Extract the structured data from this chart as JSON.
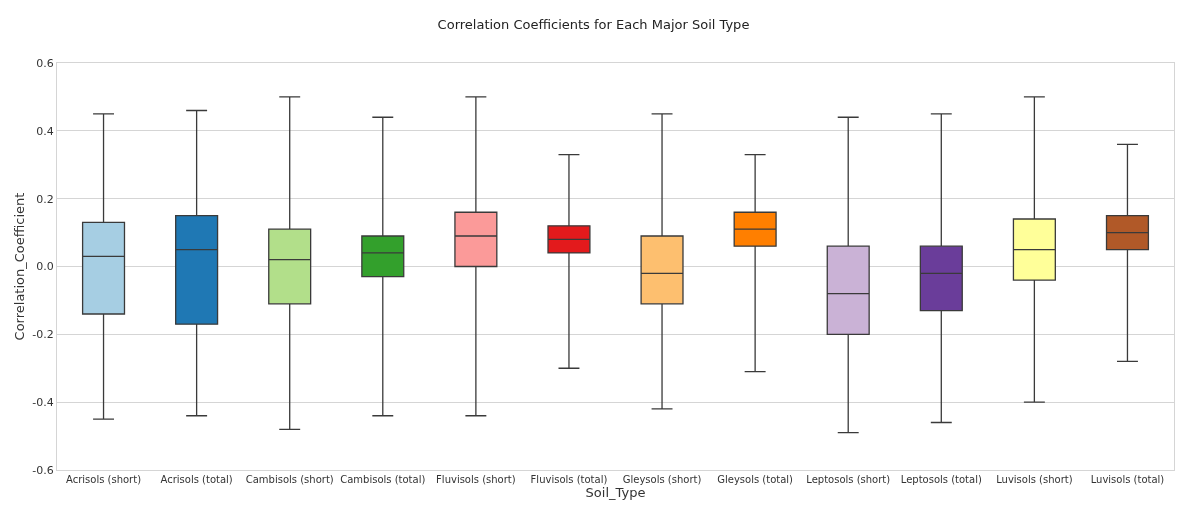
{
  "chart_data": {
    "type": "box",
    "title": "Correlation Coefficients for Each Major Soil Type",
    "xlabel": "Soil_Type",
    "ylabel": "Correlation_Coefficient",
    "categories": [
      "Acrisols (short)",
      "Acrisols (total)",
      "Cambisols (short)",
      "Cambisols (total)",
      "Fluvisols (short)",
      "Fluvisols (total)",
      "Gleysols (short)",
      "Gleysols (total)",
      "Leptosols (short)",
      "Leptosols (total)",
      "Luvisols (short)",
      "Luvisols (total)"
    ],
    "colors": [
      "#a6cee3",
      "#1f78b4",
      "#b2df8a",
      "#33a02c",
      "#fb9a99",
      "#e31a1c",
      "#fdbf6f",
      "#ff7f00",
      "#cab2d6",
      "#6a3d9a",
      "#ffff99",
      "#b15928"
    ],
    "boxes": [
      {
        "low": -0.45,
        "q1": -0.14,
        "median": 0.03,
        "q3": 0.13,
        "high": 0.45
      },
      {
        "low": -0.44,
        "q1": -0.17,
        "median": 0.05,
        "q3": 0.15,
        "high": 0.46
      },
      {
        "low": -0.48,
        "q1": -0.11,
        "median": 0.02,
        "q3": 0.11,
        "high": 0.5
      },
      {
        "low": -0.44,
        "q1": -0.03,
        "median": 0.04,
        "q3": 0.09,
        "high": 0.44
      },
      {
        "low": -0.44,
        "q1": 0.0,
        "median": 0.09,
        "q3": 0.16,
        "high": 0.5
      },
      {
        "low": -0.3,
        "q1": 0.04,
        "median": 0.08,
        "q3": 0.12,
        "high": 0.33
      },
      {
        "low": -0.42,
        "q1": -0.11,
        "median": -0.02,
        "q3": 0.09,
        "high": 0.45
      },
      {
        "low": -0.31,
        "q1": 0.06,
        "median": 0.11,
        "q3": 0.16,
        "high": 0.33
      },
      {
        "low": -0.49,
        "q1": -0.2,
        "median": -0.08,
        "q3": 0.06,
        "high": 0.44
      },
      {
        "low": -0.46,
        "q1": -0.13,
        "median": -0.02,
        "q3": 0.06,
        "high": 0.45
      },
      {
        "low": -0.4,
        "q1": -0.04,
        "median": 0.05,
        "q3": 0.14,
        "high": 0.5
      },
      {
        "low": -0.28,
        "q1": 0.05,
        "median": 0.1,
        "q3": 0.15,
        "high": 0.36
      }
    ],
    "ylim": [
      -0.6,
      0.6
    ],
    "yticks": [
      -0.6,
      -0.4,
      -0.2,
      {
        "value": 0,
        "label": "0.0"
      },
      0.2,
      0.4,
      0.6
    ],
    "grid": "y"
  }
}
